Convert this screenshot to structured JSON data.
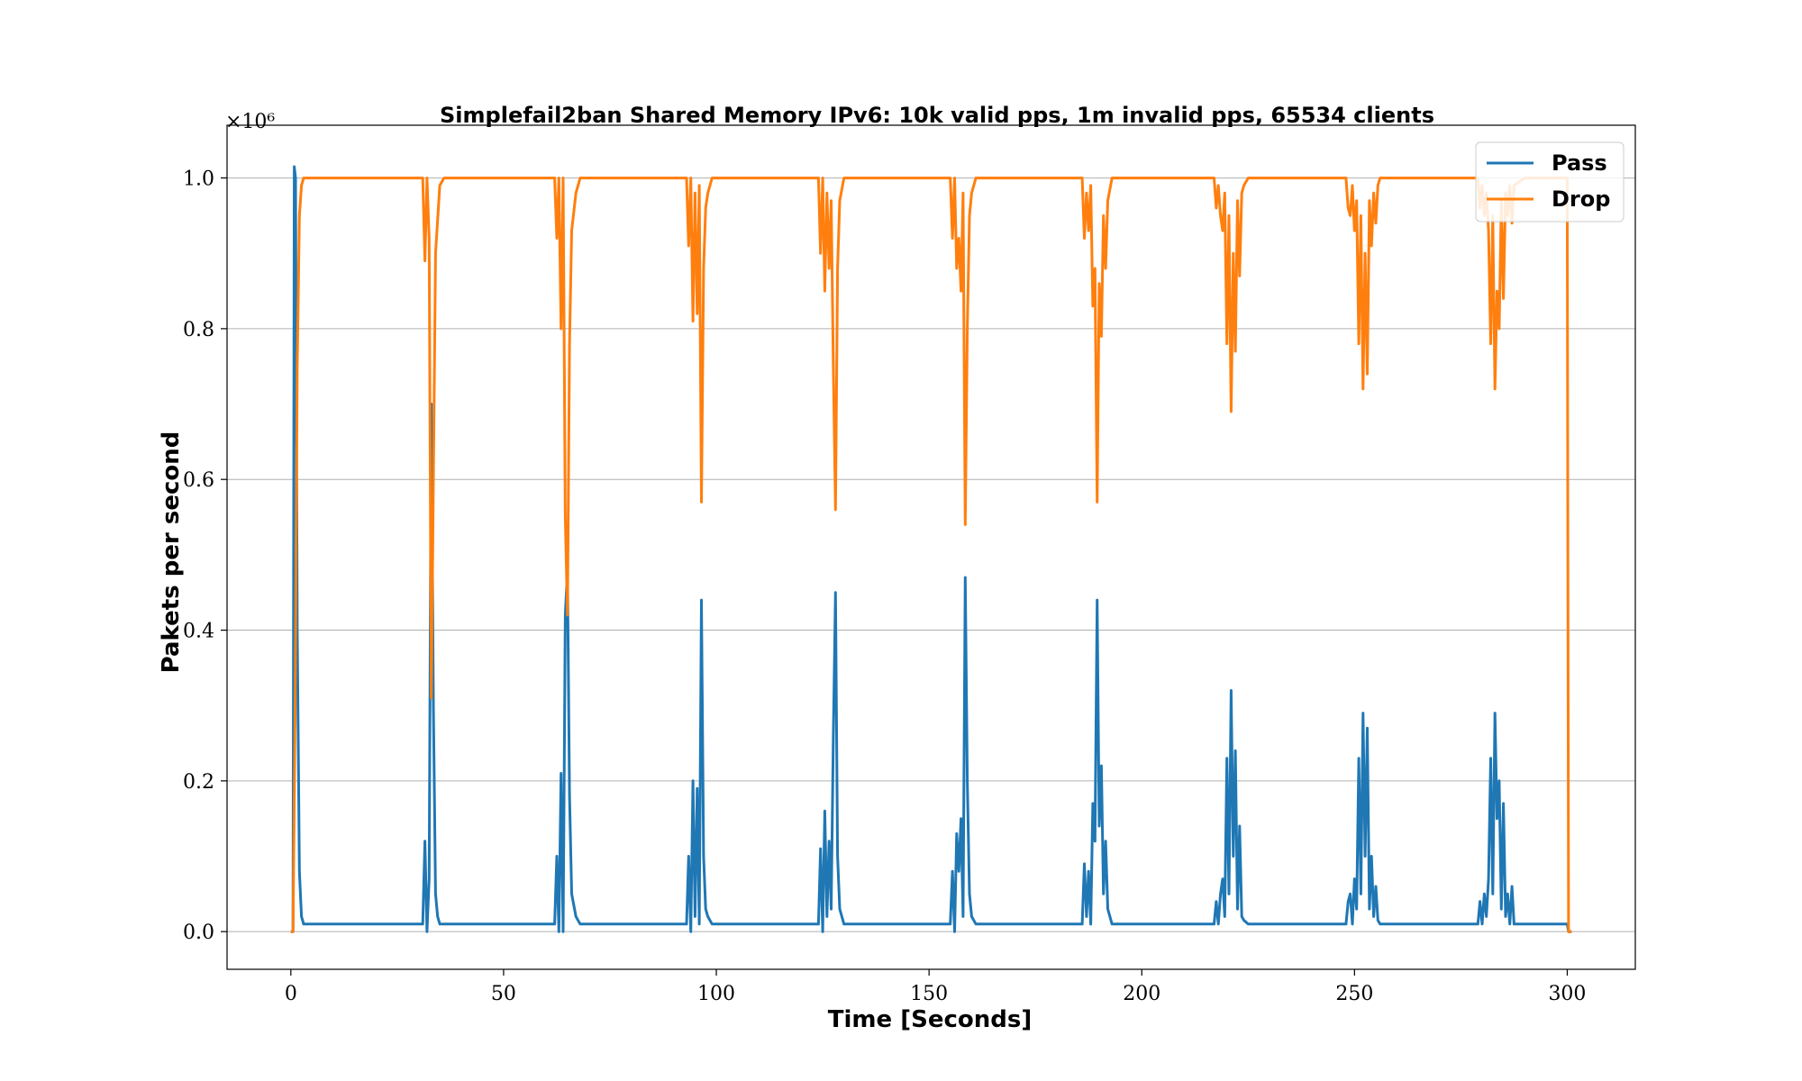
{
  "chart_data": {
    "type": "line",
    "title": "Simplefail2ban Shared Memory IPv6: 10k valid pps, 1m invalid pps, 65534 clients",
    "xlabel": "Time [Seconds]",
    "ylabel": "Pakets per second",
    "y_offset_label": "×10⁶",
    "xlim": [
      -15,
      316
    ],
    "ylim": [
      -0.05,
      1.07
    ],
    "xticks": [
      0,
      50,
      100,
      150,
      200,
      250,
      300
    ],
    "xtick_labels": [
      "0",
      "50",
      "100",
      "150",
      "200",
      "250",
      "300"
    ],
    "yticks": [
      0.0,
      0.2,
      0.4,
      0.6,
      0.8,
      1.0
    ],
    "ytick_labels": [
      "0.0",
      "0.2",
      "0.4",
      "0.6",
      "0.8",
      "1.0"
    ],
    "grid": "horizontal",
    "legend_position": "top-right",
    "series": [
      {
        "name": "Pass",
        "color": "#1f77b4",
        "points": [
          [
            0,
            0
          ],
          [
            0.5,
            0
          ],
          [
            0.8,
            1.015
          ],
          [
            1.1,
            1.0
          ],
          [
            1.5,
            0.4
          ],
          [
            2.0,
            0.08
          ],
          [
            2.5,
            0.02
          ],
          [
            3,
            0.01
          ],
          [
            31,
            0.01
          ],
          [
            31.5,
            0.12
          ],
          [
            32,
            0
          ],
          [
            32.5,
            0.07
          ],
          [
            33,
            0.7
          ],
          [
            33.5,
            0.3
          ],
          [
            34,
            0.05
          ],
          [
            34.5,
            0.02
          ],
          [
            35,
            0.01
          ],
          [
            62,
            0.01
          ],
          [
            62.5,
            0.1
          ],
          [
            63,
            0
          ],
          [
            63.5,
            0.21
          ],
          [
            64,
            0
          ],
          [
            64.5,
            0.42
          ],
          [
            65,
            0.48
          ],
          [
            65.5,
            0.18
          ],
          [
            66,
            0.05
          ],
          [
            67,
            0.02
          ],
          [
            68,
            0.01
          ],
          [
            93,
            0.01
          ],
          [
            93.5,
            0.1
          ],
          [
            94,
            0
          ],
          [
            94.5,
            0.2
          ],
          [
            95,
            0.02
          ],
          [
            95.5,
            0.19
          ],
          [
            96,
            0.01
          ],
          [
            96.5,
            0.44
          ],
          [
            97,
            0.1
          ],
          [
            97.5,
            0.03
          ],
          [
            98,
            0.02
          ],
          [
            99,
            0.01
          ],
          [
            124,
            0.01
          ],
          [
            124.5,
            0.11
          ],
          [
            125,
            0
          ],
          [
            125.5,
            0.16
          ],
          [
            126,
            0.02
          ],
          [
            126.5,
            0.12
          ],
          [
            127,
            0.03
          ],
          [
            127.5,
            0.26
          ],
          [
            128,
            0.45
          ],
          [
            128.5,
            0.1
          ],
          [
            129,
            0.03
          ],
          [
            130,
            0.01
          ],
          [
            155,
            0.01
          ],
          [
            155.5,
            0.08
          ],
          [
            156,
            0
          ],
          [
            156.5,
            0.13
          ],
          [
            157,
            0.08
          ],
          [
            157.5,
            0.15
          ],
          [
            158,
            0.02
          ],
          [
            158.5,
            0.47
          ],
          [
            159,
            0.2
          ],
          [
            159.5,
            0.05
          ],
          [
            160,
            0.02
          ],
          [
            161,
            0.01
          ],
          [
            186,
            0.01
          ],
          [
            186.5,
            0.09
          ],
          [
            187,
            0.02
          ],
          [
            187.5,
            0.08
          ],
          [
            188,
            0.01
          ],
          [
            188.5,
            0.17
          ],
          [
            189,
            0.12
          ],
          [
            189.5,
            0.44
          ],
          [
            190,
            0.14
          ],
          [
            190.5,
            0.22
          ],
          [
            191,
            0.05
          ],
          [
            191.5,
            0.12
          ],
          [
            192,
            0.03
          ],
          [
            193,
            0.01
          ],
          [
            217,
            0.01
          ],
          [
            217.5,
            0.04
          ],
          [
            218,
            0.01
          ],
          [
            218.5,
            0.05
          ],
          [
            219,
            0.07
          ],
          [
            219.5,
            0.02
          ],
          [
            220,
            0.23
          ],
          [
            220.5,
            0.05
          ],
          [
            221,
            0.32
          ],
          [
            221.5,
            0.1
          ],
          [
            222,
            0.24
          ],
          [
            222.5,
            0.03
          ],
          [
            223,
            0.14
          ],
          [
            223.5,
            0.02
          ],
          [
            224,
            0.015
          ],
          [
            225,
            0.01
          ],
          [
            248,
            0.01
          ],
          [
            248.5,
            0.04
          ],
          [
            249,
            0.05
          ],
          [
            249.5,
            0.01
          ],
          [
            250,
            0.07
          ],
          [
            250.5,
            0.03
          ],
          [
            251,
            0.23
          ],
          [
            251.5,
            0.05
          ],
          [
            252,
            0.29
          ],
          [
            252.5,
            0.1
          ],
          [
            253,
            0.27
          ],
          [
            253.5,
            0.03
          ],
          [
            254,
            0.1
          ],
          [
            254.5,
            0.02
          ],
          [
            255,
            0.06
          ],
          [
            255.5,
            0.015
          ],
          [
            256,
            0.01
          ],
          [
            279,
            0.01
          ],
          [
            279.5,
            0.04
          ],
          [
            280,
            0.01
          ],
          [
            280.5,
            0.05
          ],
          [
            281,
            0.02
          ],
          [
            281.5,
            0.07
          ],
          [
            282,
            0.23
          ],
          [
            282.5,
            0.05
          ],
          [
            283,
            0.29
          ],
          [
            283.5,
            0.15
          ],
          [
            284,
            0.2
          ],
          [
            284.5,
            0.03
          ],
          [
            285,
            0.17
          ],
          [
            285.5,
            0.02
          ],
          [
            286,
            0.05
          ],
          [
            286.5,
            0.01
          ],
          [
            287,
            0.06
          ],
          [
            287.5,
            0.01
          ],
          [
            290,
            0.01
          ],
          [
            300,
            0.01
          ],
          [
            300.3,
            0
          ],
          [
            301,
            0
          ]
        ]
      },
      {
        "name": "Drop",
        "color": "#ff7f0e",
        "points": [
          [
            0,
            0
          ],
          [
            0.5,
            0
          ],
          [
            1.0,
            0.3
          ],
          [
            1.5,
            0.75
          ],
          [
            2.0,
            0.95
          ],
          [
            2.5,
            0.99
          ],
          [
            3,
            1.0
          ],
          [
            31,
            1.0
          ],
          [
            31.5,
            0.89
          ],
          [
            32,
            1.0
          ],
          [
            32.5,
            0.92
          ],
          [
            33,
            0.31
          ],
          [
            33.5,
            0.6
          ],
          [
            34,
            0.9
          ],
          [
            35,
            0.99
          ],
          [
            36,
            1.0
          ],
          [
            62,
            1.0
          ],
          [
            62.5,
            0.92
          ],
          [
            63,
            1.0
          ],
          [
            63.5,
            0.8
          ],
          [
            64,
            1.0
          ],
          [
            64.5,
            0.55
          ],
          [
            65,
            0.42
          ],
          [
            65.5,
            0.78
          ],
          [
            66,
            0.93
          ],
          [
            67,
            0.98
          ],
          [
            68,
            1.0
          ],
          [
            93,
            1.0
          ],
          [
            93.5,
            0.91
          ],
          [
            94,
            1.0
          ],
          [
            94.5,
            0.81
          ],
          [
            95,
            0.98
          ],
          [
            95.5,
            0.82
          ],
          [
            96,
            0.99
          ],
          [
            96.5,
            0.57
          ],
          [
            97,
            0.88
          ],
          [
            97.5,
            0.96
          ],
          [
            98,
            0.98
          ],
          [
            99,
            1.0
          ],
          [
            124,
            1.0
          ],
          [
            124.5,
            0.9
          ],
          [
            125,
            1.0
          ],
          [
            125.5,
            0.85
          ],
          [
            126,
            0.98
          ],
          [
            126.5,
            0.88
          ],
          [
            127,
            0.97
          ],
          [
            127.5,
            0.75
          ],
          [
            128,
            0.56
          ],
          [
            128.5,
            0.88
          ],
          [
            129,
            0.97
          ],
          [
            130,
            1.0
          ],
          [
            155,
            1.0
          ],
          [
            155.5,
            0.92
          ],
          [
            156,
            1.0
          ],
          [
            156.5,
            0.88
          ],
          [
            157,
            0.92
          ],
          [
            157.5,
            0.85
          ],
          [
            158,
            0.98
          ],
          [
            158.5,
            0.54
          ],
          [
            159,
            0.8
          ],
          [
            159.5,
            0.95
          ],
          [
            160,
            0.98
          ],
          [
            161,
            1.0
          ],
          [
            186,
            1.0
          ],
          [
            186.5,
            0.92
          ],
          [
            187,
            0.98
          ],
          [
            187.5,
            0.93
          ],
          [
            188,
            0.99
          ],
          [
            188.5,
            0.83
          ],
          [
            189,
            0.88
          ],
          [
            189.5,
            0.57
          ],
          [
            190,
            0.86
          ],
          [
            190.5,
            0.79
          ],
          [
            191,
            0.95
          ],
          [
            191.5,
            0.88
          ],
          [
            192,
            0.97
          ],
          [
            193,
            1.0
          ],
          [
            217,
            1.0
          ],
          [
            217.5,
            0.96
          ],
          [
            218,
            0.99
          ],
          [
            218.5,
            0.95
          ],
          [
            219,
            0.93
          ],
          [
            219.5,
            0.98
          ],
          [
            220,
            0.78
          ],
          [
            220.5,
            0.95
          ],
          [
            221,
            0.69
          ],
          [
            221.5,
            0.9
          ],
          [
            222,
            0.77
          ],
          [
            222.5,
            0.97
          ],
          [
            223,
            0.87
          ],
          [
            223.5,
            0.98
          ],
          [
            224,
            0.99
          ],
          [
            225,
            1.0
          ],
          [
            248,
            1.0
          ],
          [
            248.5,
            0.96
          ],
          [
            249,
            0.95
          ],
          [
            249.5,
            0.99
          ],
          [
            250,
            0.93
          ],
          [
            250.5,
            0.97
          ],
          [
            251,
            0.78
          ],
          [
            251.5,
            0.95
          ],
          [
            252,
            0.72
          ],
          [
            252.5,
            0.9
          ],
          [
            253,
            0.74
          ],
          [
            253.5,
            0.97
          ],
          [
            254,
            0.91
          ],
          [
            254.5,
            0.98
          ],
          [
            255,
            0.94
          ],
          [
            255.5,
            0.99
          ],
          [
            256,
            1.0
          ],
          [
            279,
            1.0
          ],
          [
            279.5,
            0.96
          ],
          [
            280,
            0.99
          ],
          [
            280.5,
            0.95
          ],
          [
            281,
            0.98
          ],
          [
            281.5,
            0.93
          ],
          [
            282,
            0.78
          ],
          [
            282.5,
            0.95
          ],
          [
            283,
            0.72
          ],
          [
            283.5,
            0.85
          ],
          [
            284,
            0.8
          ],
          [
            284.5,
            0.97
          ],
          [
            285,
            0.84
          ],
          [
            285.5,
            0.98
          ],
          [
            286,
            0.95
          ],
          [
            286.5,
            0.99
          ],
          [
            287,
            0.94
          ],
          [
            287.5,
            0.99
          ],
          [
            290,
            1.0
          ],
          [
            300,
            1.0
          ],
          [
            300.3,
            0
          ],
          [
            301,
            0
          ]
        ]
      }
    ]
  }
}
